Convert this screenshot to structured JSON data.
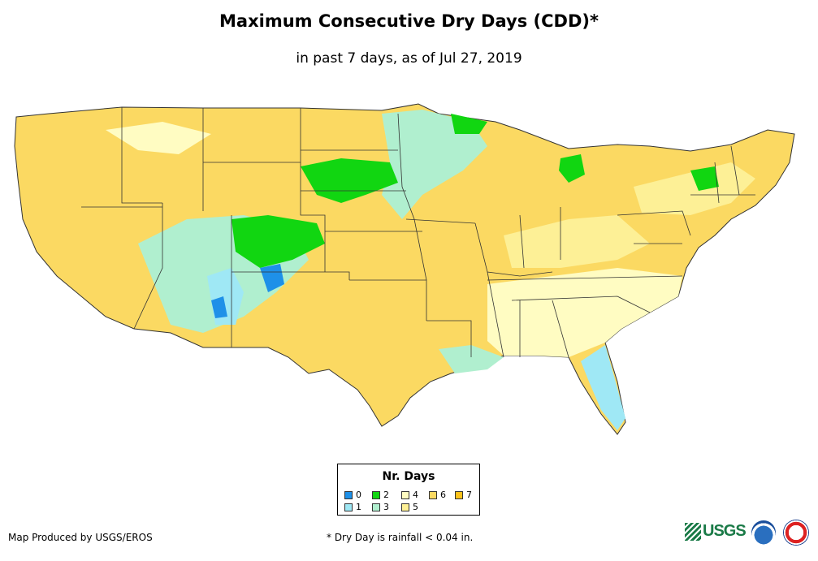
{
  "header": {
    "title": "Maximum Consecutive Dry Days (CDD)*",
    "subtitle": "in past 7 days, as of Jul 27, 2019"
  },
  "legend": {
    "title": "Nr. Days",
    "items": [
      {
        "label": "0",
        "color": "#1e90e8"
      },
      {
        "label": "1",
        "color": "#9fe8f5"
      },
      {
        "label": "2",
        "color": "#11d611"
      },
      {
        "label": "3",
        "color": "#b0efcf"
      },
      {
        "label": "4",
        "color": "#fffcc2"
      },
      {
        "label": "5",
        "color": "#fdf096"
      },
      {
        "label": "6",
        "color": "#fbd962"
      },
      {
        "label": "7",
        "color": "#fcc21a"
      }
    ]
  },
  "footer": {
    "credit": "Map Produced by USGS/EROS",
    "footnote": "* Dry Day is rainfall < 0.04 in.",
    "logos": {
      "usgs": "USGS",
      "noaa": "noaa-logo",
      "nws": "nws-logo"
    }
  }
}
